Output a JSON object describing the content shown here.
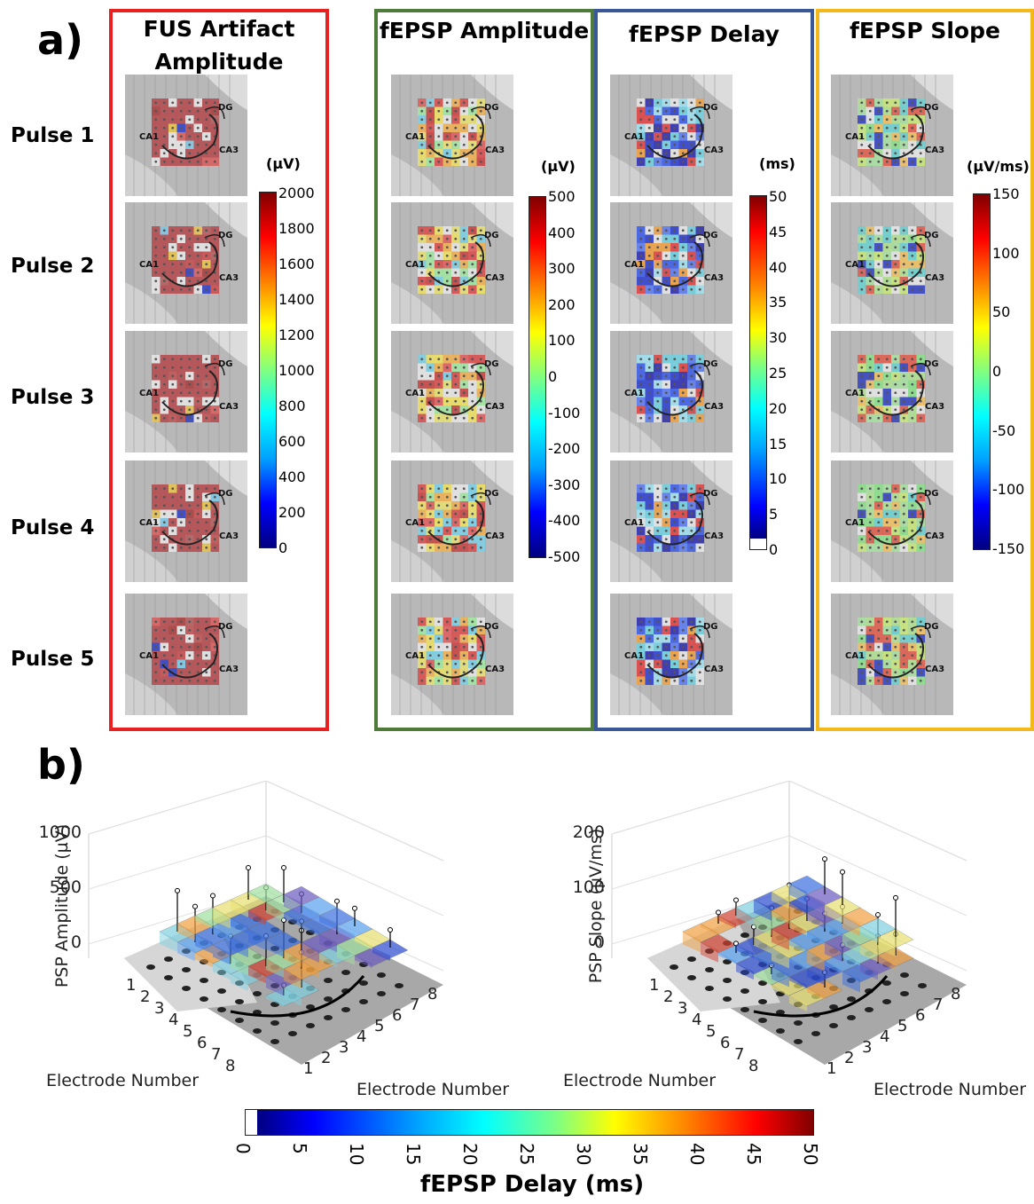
{
  "section_a_label": "a)",
  "section_b_label": "b)",
  "pulses": [
    "Pulse 1",
    "Pulse 2",
    "Pulse 3",
    "Pulse 4",
    "Pulse 5"
  ],
  "panels": [
    {
      "title_line1": "FUS Artifact",
      "title_line2": "Amplitude",
      "unit": "(µV)",
      "ticks": [
        "2000",
        "1800",
        "1600",
        "1400",
        "1200",
        "1000",
        "800",
        "600",
        "400",
        "200",
        "0"
      ],
      "border": "#e8201f"
    },
    {
      "title_line1": "fEPSP Amplitude",
      "title_line2": "",
      "unit": "(µV)",
      "ticks": [
        "500",
        "400",
        "300",
        "200",
        "100",
        "0",
        "-100",
        "-200",
        "-300",
        "-400",
        "-500"
      ],
      "border": "#4e7a3a"
    },
    {
      "title_line1": "fEPSP Delay",
      "title_line2": "",
      "unit": "(ms)",
      "ticks": [
        "50",
        "45",
        "40",
        "35",
        "30",
        "25",
        "20",
        "15",
        "10",
        "5",
        "0"
      ],
      "border": "#3a5797"
    },
    {
      "title_line1": "fEPSP Slope",
      "title_line2": "",
      "unit": "(µV/ms)",
      "ticks": [
        "150",
        "100",
        "50",
        "0",
        "-50",
        "-100",
        "-150"
      ],
      "border": "#f3b81c"
    }
  ],
  "region_labels": {
    "dg": "DG",
    "ca1": "CA1",
    "ca3": "CA3"
  },
  "plot_left": {
    "zlabel": "PSP Amplitude (µV)",
    "zticks": [
      "1000",
      "500",
      "0"
    ],
    "xlabel": "Electrode Number",
    "ylabel": "Electrode Number"
  },
  "plot_right": {
    "zlabel": "PSP Slope (µV/ms)",
    "zticks": [
      "200",
      "100",
      "0"
    ],
    "xlabel": "Electrode Number",
    "ylabel": "Electrode Number"
  },
  "electrode_ticks": [
    "1",
    "2",
    "3",
    "4",
    "5",
    "6",
    "7",
    "8"
  ],
  "bottom_colorbar": {
    "ticks": [
      "0",
      "5",
      "10",
      "15",
      "20",
      "25",
      "30",
      "35",
      "40",
      "45",
      "50"
    ],
    "label": "fEPSP Delay (ms)"
  }
}
